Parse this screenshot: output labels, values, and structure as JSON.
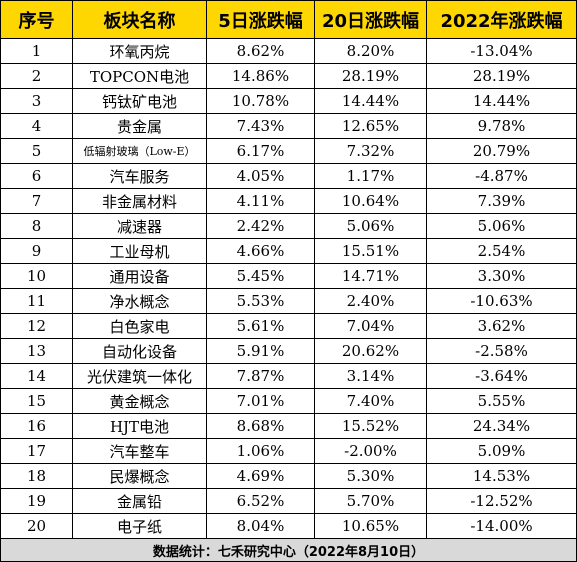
{
  "table": {
    "headers": [
      "序号",
      "板块名称",
      "5日涨跌幅",
      "20日涨跌幅",
      "2022年涨跌幅"
    ],
    "rows": [
      [
        "1",
        "环氧丙烷",
        "8.62%",
        "8.20%",
        "-13.04%"
      ],
      [
        "2",
        "TOPCON电池",
        "14.86%",
        "28.19%",
        "28.19%"
      ],
      [
        "3",
        "钙钛矿电池",
        "10.78%",
        "14.44%",
        "14.44%"
      ],
      [
        "4",
        "贵金属",
        "7.43%",
        "12.65%",
        "9.78%"
      ],
      [
        "5",
        "低辐射玻璃（Low-E）",
        "6.17%",
        "7.32%",
        "20.79%"
      ],
      [
        "6",
        "汽车服务",
        "4.05%",
        "1.17%",
        "-4.87%"
      ],
      [
        "7",
        "非金属材料",
        "4.11%",
        "10.64%",
        "7.39%"
      ],
      [
        "8",
        "减速器",
        "2.42%",
        "5.06%",
        "5.06%"
      ],
      [
        "9",
        "工业母机",
        "4.66%",
        "15.51%",
        "2.54%"
      ],
      [
        "10",
        "通用设备",
        "5.45%",
        "14.71%",
        "3.30%"
      ],
      [
        "11",
        "净水概念",
        "5.53%",
        "2.40%",
        "-10.63%"
      ],
      [
        "12",
        "白色家电",
        "5.61%",
        "7.04%",
        "3.62%"
      ],
      [
        "13",
        "自动化设备",
        "5.91%",
        "20.62%",
        "-2.58%"
      ],
      [
        "14",
        "光伏建筑一体化",
        "7.87%",
        "3.14%",
        "-3.64%"
      ],
      [
        "15",
        "黄金概念",
        "7.01%",
        "7.40%",
        "5.55%"
      ],
      [
        "16",
        "HJT电池",
        "8.68%",
        "15.52%",
        "24.34%"
      ],
      [
        "17",
        "汽车整车",
        "1.06%",
        "-2.00%",
        "5.09%"
      ],
      [
        "18",
        "民爆概念",
        "4.69%",
        "5.30%",
        "14.53%"
      ],
      [
        "19",
        "金属铅",
        "6.52%",
        "5.70%",
        "-12.52%"
      ],
      [
        "20",
        "电子纸",
        "8.04%",
        "10.65%",
        "-14.00%"
      ]
    ],
    "footer": "数据统计：七禾研究中心（2022年8月10日）"
  },
  "colors": {
    "header_bg": "#ffd700",
    "footer_bg": "#d9d9d9",
    "border": "#000000"
  }
}
